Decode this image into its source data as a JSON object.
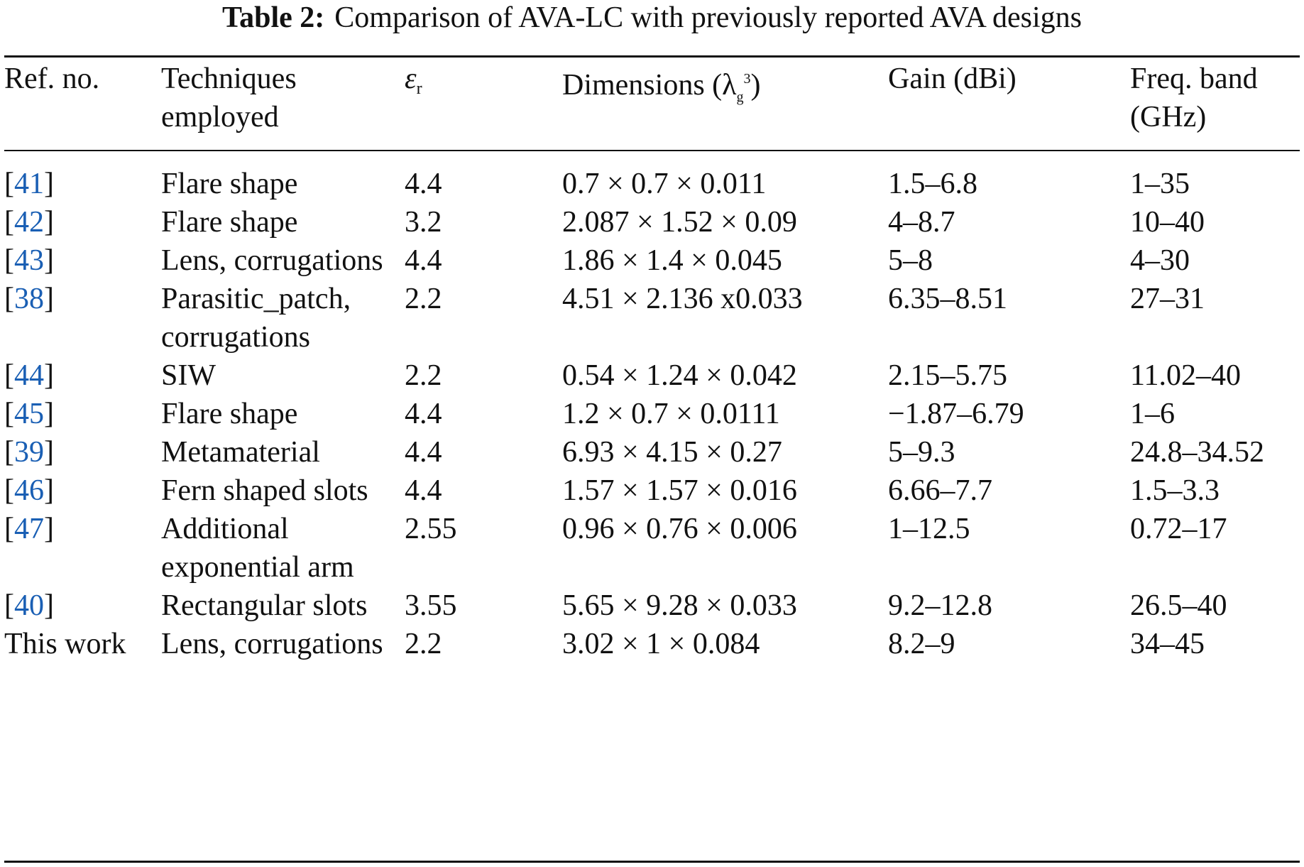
{
  "caption": {
    "label": "Table 2:",
    "text": "Comparison of AVA-LC with previously reported AVA designs"
  },
  "headers": {
    "ref": "Ref. no.",
    "tech_line1": "Techniques",
    "tech_line2": "employed",
    "er_symbol": "ε",
    "er_sub": "r",
    "dim_prefix": "Dimensions (",
    "dim_lambda": "λ",
    "dim_sub": "g",
    "dim_sup": "3",
    "dim_suffix": ")",
    "gain": "Gain (dBi)",
    "freq_line1": "Freq. band",
    "freq_line2": "(GHz)"
  },
  "rows": [
    {
      "ref": "41",
      "tech": "Flare shape",
      "er": "4.4",
      "dim": "0.7 × 0.7 × 0.011",
      "gain": "1.5–6.8",
      "freq": "1–35"
    },
    {
      "ref": "42",
      "tech": "Flare shape",
      "er": "3.2",
      "dim": "2.087 × 1.52 × 0.09",
      "gain": "4–8.7",
      "freq": "10–40"
    },
    {
      "ref": "43",
      "tech": "Lens, corrugations",
      "er": "4.4",
      "dim": "1.86 × 1.4 × 0.045",
      "gain": "5–8",
      "freq": "4–30"
    },
    {
      "ref": "38",
      "tech": "Parasitic_patch, corrugations",
      "er": "2.2",
      "dim": "4.51 × 2.136 x0.033",
      "gain": "6.35–8.51",
      "freq": "27–31"
    },
    {
      "ref": "44",
      "tech": "SIW",
      "er": "2.2",
      "dim": "0.54 × 1.24 × 0.042",
      "gain": "2.15–5.75",
      "freq": "11.02–40"
    },
    {
      "ref": "45",
      "tech": "Flare shape",
      "er": "4.4",
      "dim": "1.2 × 0.7 × 0.0111",
      "gain": "−1.87–6.79",
      "freq": "1–6"
    },
    {
      "ref": "39",
      "tech": "Metamaterial",
      "er": "4.4",
      "dim": "6.93 × 4.15 × 0.27",
      "gain": "5–9.3",
      "freq": "24.8–34.52"
    },
    {
      "ref": "46",
      "tech": "Fern shaped slots",
      "er": "4.4",
      "dim": "1.57 × 1.57 × 0.016",
      "gain": "6.66–7.7",
      "freq": "1.5–3.3"
    },
    {
      "ref": "47",
      "tech": "Additional exponential arm",
      "er": "2.55",
      "dim": "0.96 × 0.76 × 0.006",
      "gain": "1–12.5",
      "freq": "0.72–17"
    },
    {
      "ref": "40",
      "tech": "Rectangular slots",
      "er": "3.55",
      "dim": "5.65 × 9.28 × 0.033",
      "gain": "9.2–12.8",
      "freq": "26.5–40"
    },
    {
      "ref": "This work",
      "tech": "Lens, corrugations",
      "er": "2.2",
      "dim": "3.02 × 1 × 0.084",
      "gain": "8.2–9",
      "freq": "34–45"
    }
  ]
}
